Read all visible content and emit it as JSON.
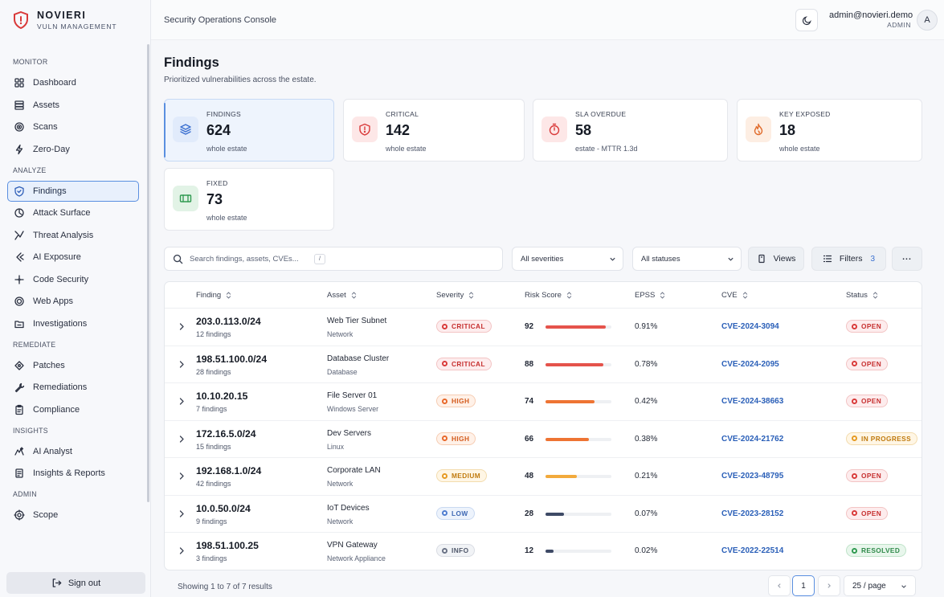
{
  "brand": {
    "name": "NOVIERI",
    "subtitle": "VULN MANAGEMENT",
    "accent": "#d93a3a"
  },
  "sidebar": {
    "sections": [
      {
        "label": "MONITOR",
        "items": [
          {
            "label": "Dashboard",
            "icon": "dashboard-icon"
          },
          {
            "label": "Assets",
            "icon": "assets-icon"
          },
          {
            "label": "Scans",
            "icon": "scans-icon"
          },
          {
            "label": "Zero-Day",
            "icon": "zero-day-icon"
          }
        ]
      },
      {
        "label": "ANALYZE",
        "items": [
          {
            "label": "Findings",
            "icon": "shield-icon",
            "active": true
          },
          {
            "label": "Attack Surface",
            "icon": "attack-surface-icon"
          },
          {
            "label": "Threat Analysis",
            "icon": "threat-icon"
          },
          {
            "label": "AI Exposure",
            "icon": "ai-exposure-icon"
          },
          {
            "label": "Code Security",
            "icon": "code-icon"
          },
          {
            "label": "Web Apps",
            "icon": "web-apps-icon"
          },
          {
            "label": "Investigations",
            "icon": "folder-icon"
          }
        ]
      },
      {
        "label": "REMEDIATE",
        "items": [
          {
            "label": "Patches",
            "icon": "patches-icon"
          },
          {
            "label": "Remediations",
            "icon": "wrench-icon"
          },
          {
            "label": "Compliance",
            "icon": "clipboard-icon"
          }
        ]
      },
      {
        "label": "INSIGHTS",
        "items": [
          {
            "label": "AI Analyst",
            "icon": "ai-analyst-icon"
          },
          {
            "label": "Insights & Reports",
            "icon": "reports-icon"
          }
        ]
      },
      {
        "label": "ADMIN",
        "items": [
          {
            "label": "Scope",
            "icon": "scope-icon"
          }
        ]
      }
    ],
    "signout_label": "Sign out"
  },
  "header": {
    "breadcrumb": "Security Operations Console",
    "user_email": "admin@novieri.demo",
    "user_role": "ADMIN",
    "avatar_initial": "A"
  },
  "page": {
    "title": "Findings",
    "subtitle": "Prioritized vulnerabilities across the estate."
  },
  "stats": [
    {
      "label": "FINDINGS",
      "value": "624",
      "note": "whole estate",
      "icon": "layers-icon",
      "tint": "#e1ebfb",
      "color": "#3a6fd0",
      "active": true
    },
    {
      "label": "CRITICAL",
      "value": "142",
      "note": "whole estate",
      "icon": "shield-alert-icon",
      "tint": "#fde7e7",
      "color": "#d93a3a"
    },
    {
      "label": "SLA OVERDUE",
      "value": "58",
      "note": "estate - MTTR 1.3d",
      "icon": "timer-icon",
      "tint": "#fde7e7",
      "color": "#d93a3a"
    },
    {
      "label": "KEY EXPOSED",
      "value": "18",
      "note": "whole estate",
      "icon": "flame-icon",
      "tint": "#fdeee3",
      "color": "#e06a2a"
    },
    {
      "label": "FIXED",
      "value": "73",
      "note": "whole estate",
      "icon": "ticket-icon",
      "tint": "#e2f3e6",
      "color": "#2f9a50"
    }
  ],
  "toolbar": {
    "search_placeholder": "Search findings, assets, CVEs...",
    "kbd_hint": "/",
    "severity_filter": "All severities",
    "status_filter": "All statuses",
    "views_label": "Views",
    "filters_label": "Filters",
    "filters_count": "3",
    "more_label": "..."
  },
  "table": {
    "columns": [
      "Finding",
      "Asset",
      "Severity",
      "Risk Score",
      "EPSS",
      "CVE",
      "Status"
    ],
    "rows": [
      {
        "finding": "203.0.113.0/24",
        "count": "12 findings",
        "asset": "Web Tier Subnet",
        "asset_type": "Network",
        "severity": "CRITICAL",
        "risk": "92",
        "risk_fraction": 0.92,
        "epss": "0.91%",
        "cve": "CVE-2024-3094",
        "status": "OPEN"
      },
      {
        "finding": "198.51.100.0/24",
        "count": "28 findings",
        "asset": "Database Cluster",
        "asset_type": "Database",
        "severity": "CRITICAL",
        "risk": "88",
        "risk_fraction": 0.88,
        "epss": "0.78%",
        "cve": "CVE-2024-2095",
        "status": "OPEN"
      },
      {
        "finding": "10.10.20.15",
        "count": "7 findings",
        "asset": "File Server 01",
        "asset_type": "Windows Server",
        "severity": "HIGH",
        "risk": "74",
        "risk_fraction": 0.74,
        "epss": "0.42%",
        "cve": "CVE-2024-38663",
        "status": "OPEN"
      },
      {
        "finding": "172.16.5.0/24",
        "count": "15 findings",
        "asset": "Dev Servers",
        "asset_type": "Linux",
        "severity": "HIGH",
        "risk": "66",
        "risk_fraction": 0.66,
        "epss": "0.38%",
        "cve": "CVE-2024-21762",
        "status": "IN PROGRESS"
      },
      {
        "finding": "192.168.1.0/24",
        "count": "42 findings",
        "asset": "Corporate LAN",
        "asset_type": "Network",
        "severity": "MEDIUM",
        "risk": "48",
        "risk_fraction": 0.48,
        "epss": "0.21%",
        "cve": "CVE-2023-48795",
        "status": "OPEN"
      },
      {
        "finding": "10.0.50.0/24",
        "count": "9 findings",
        "asset": "IoT Devices",
        "asset_type": "Network",
        "severity": "LOW",
        "risk": "28",
        "risk_fraction": 0.28,
        "epss": "0.07%",
        "cve": "CVE-2023-28152",
        "status": "OPEN"
      },
      {
        "finding": "198.51.100.25",
        "count": "3 findings",
        "asset": "VPN Gateway",
        "asset_type": "Network Appliance",
        "severity": "INFO",
        "risk": "12",
        "risk_fraction": 0.12,
        "epss": "0.02%",
        "cve": "CVE-2022-22514",
        "status": "RESOLVED"
      }
    ]
  },
  "severity_colors": {
    "CRITICAL": {
      "fg": "#c62f2f",
      "bg": "#fdeced",
      "border": "#f3c4c4",
      "dot": "#d93a3a",
      "bar": "#e5534b"
    },
    "HIGH": {
      "fg": "#d35a1c",
      "bg": "#fff1e8",
      "border": "#f6cdb3",
      "dot": "#e8682a",
      "bar": "#ee7433"
    },
    "MEDIUM": {
      "fg": "#c07a0e",
      "bg": "#fff6e5",
      "border": "#f3dcae",
      "dot": "#e69a22",
      "bar": "#f2aa3c"
    },
    "LOW": {
      "fg": "#3d67b3",
      "bg": "#edf3fc",
      "border": "#c9d9f1",
      "dot": "#4f7dd0",
      "bar": "#3e4a66"
    },
    "INFO": {
      "fg": "#4f576a",
      "bg": "#f1f3f6",
      "border": "#d9dce3",
      "dot": "#6b7386",
      "bar": "#3e4a66"
    }
  },
  "status_colors": {
    "OPEN": {
      "fg": "#c62f2f",
      "bg": "#fdeced",
      "border": "#f3c4c4",
      "dot": "#d93a3a"
    },
    "IN PROGRESS": {
      "fg": "#c07a0e",
      "bg": "#fff6e5",
      "border": "#f3dcae",
      "dot": "#e69a22"
    },
    "RESOLVED": {
      "fg": "#2f8a4a",
      "bg": "#e8f6ec",
      "border": "#bfe3c9",
      "dot": "#2f9a50"
    }
  },
  "pagination": {
    "summary": "Showing 1 to 7 of 7 results",
    "current_page": "1",
    "per_page": "25 / page"
  }
}
